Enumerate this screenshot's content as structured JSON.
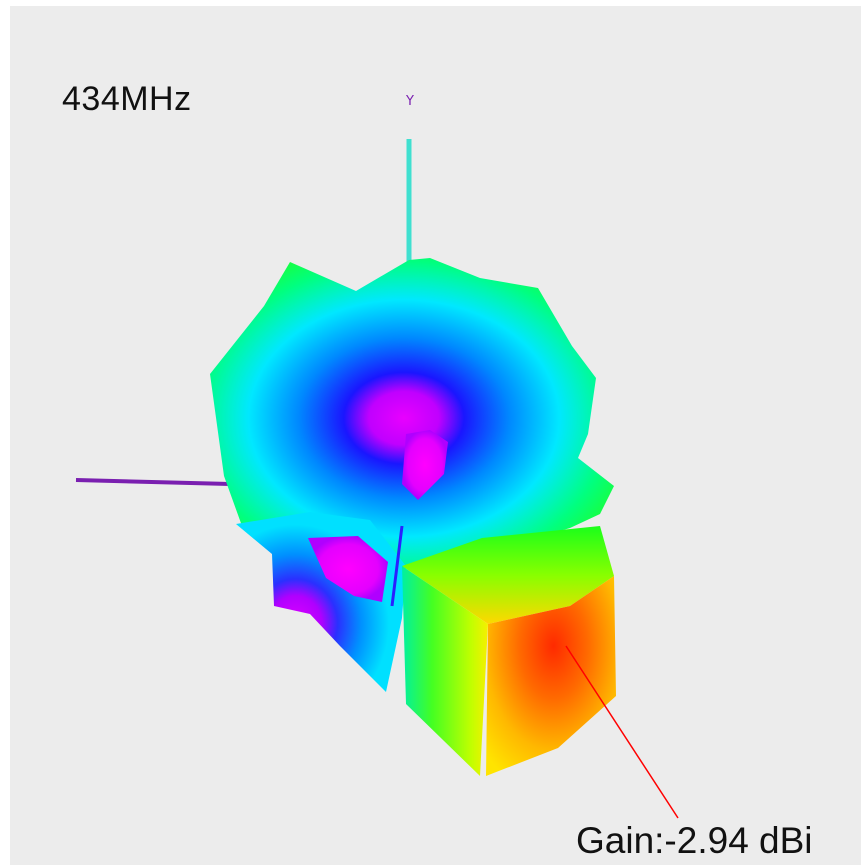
{
  "frequency_label": "434MHz",
  "gain_readout": "Gain:-2.94 dBi",
  "axis_y_label": "Y",
  "colors": {
    "background": "#ececec",
    "axis_x": "#7a1fb0",
    "axis_y": "#3fe0d0",
    "axis_y_label": "#7a1fb0",
    "marker_line": "#ff0000",
    "text": "#111111",
    "gain_high": "#ff3d00",
    "gain_mid": "#ffee00",
    "gain_low": "#00d8ff",
    "gain_min": "#e000ff"
  }
}
